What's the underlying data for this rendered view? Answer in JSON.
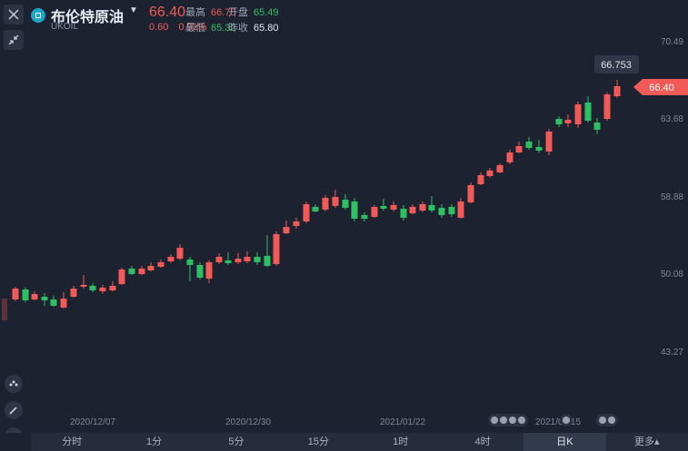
{
  "header": {
    "title": "布伦特原油",
    "symbol": "UKOIL",
    "price": "66.40",
    "change": "0.60",
    "change_pct": "0.91%",
    "stats": [
      {
        "label": "最高",
        "value": "66.75",
        "color": "red"
      },
      {
        "label": "开盘",
        "value": "65.49",
        "color": "green"
      },
      {
        "label": "最低",
        "value": "65.32",
        "color": "green"
      },
      {
        "label": "昨收",
        "value": "65.80",
        "color": "white"
      }
    ]
  },
  "chart_data": {
    "type": "candlestick",
    "y_ticks": [
      "70.49",
      "63.68",
      "58.88",
      "50.08",
      "43.27"
    ],
    "x_labels": [
      "2020/12/07",
      "2020/12/30",
      "2021/01/22",
      "2021/02/15"
    ],
    "current_price_tag": "66.40",
    "high_marker": "66.753",
    "colors": {
      "up": "#f05b57",
      "down": "#2fbf63"
    }
  },
  "tabs": [
    {
      "label": "分时",
      "active": false
    },
    {
      "label": "1分",
      "active": false
    },
    {
      "label": "5分",
      "active": false
    },
    {
      "label": "15分",
      "active": false
    },
    {
      "label": "1时",
      "active": false
    },
    {
      "label": "4时",
      "active": false
    },
    {
      "label": "日K",
      "active": true
    },
    {
      "label": "更多▴",
      "active": false
    }
  ]
}
